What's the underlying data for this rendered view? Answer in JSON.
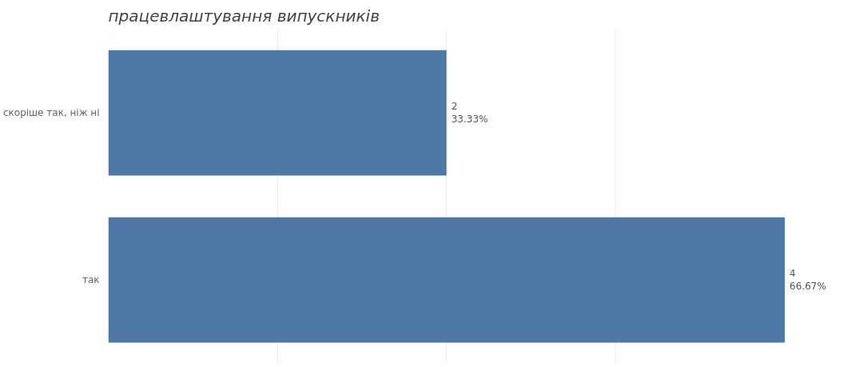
{
  "chart_data": {
    "type": "bar",
    "orientation": "horizontal",
    "title": "працевлаштування випускників",
    "categories": [
      "скоріше так, ніж ні",
      "так"
    ],
    "values": [
      2,
      4
    ],
    "color": "#4e79a7",
    "value_labels": [
      "2\n33.33%",
      "4\n66.67%"
    ],
    "xticks": [
      {
        "value": 1,
        "label": null
      },
      {
        "value": 2,
        "label": null
      },
      {
        "value": 3,
        "label": null
      }
    ],
    "grid": "x",
    "tick_labels": "y"
  }
}
